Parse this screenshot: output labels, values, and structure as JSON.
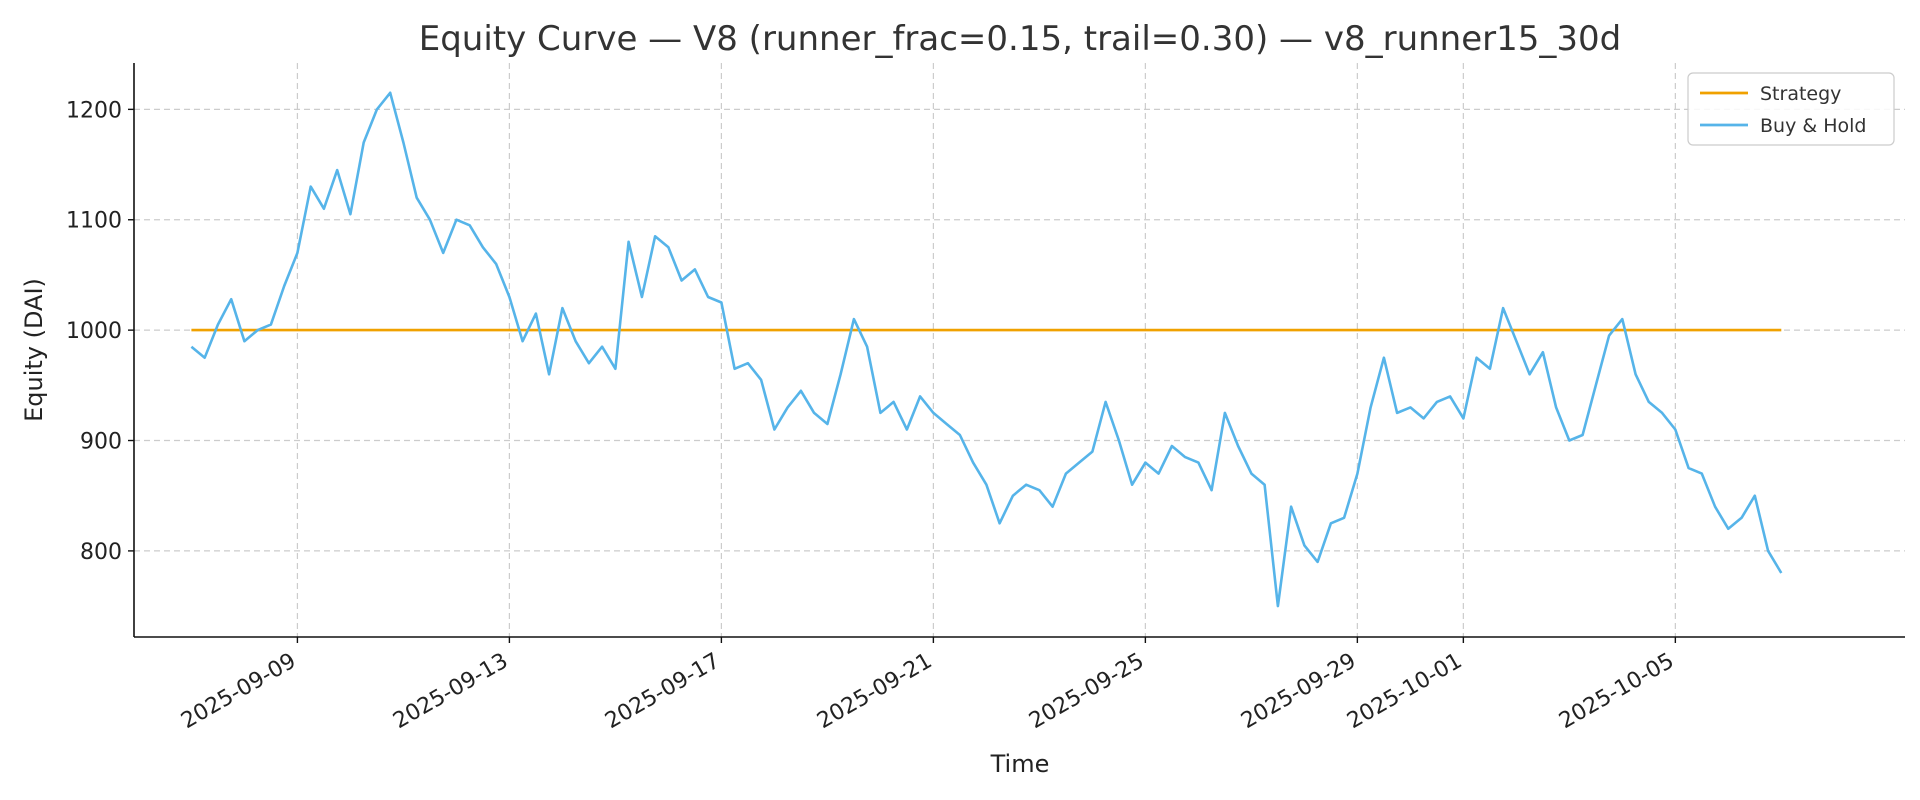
{
  "chart_data": {
    "type": "line",
    "title": "Equity Curve — V8 (runner_frac=0.15, trail=0.30) — v8_runner15_30d",
    "xlabel": "Time",
    "ylabel": "Equity (DAI)",
    "x_ticks": [
      "2025-09-09",
      "2025-09-13",
      "2025-09-17",
      "2025-09-21",
      "2025-09-25",
      "2025-09-29",
      "2025-10-01",
      "2025-10-05"
    ],
    "y_ticks": [
      800,
      900,
      1000,
      1100,
      1200
    ],
    "xlim": [
      "2025-09-05T22:00",
      "2025-10-09T08:00"
    ],
    "ylim": [
      722,
      1242
    ],
    "grid": true,
    "legend_position": "top-right",
    "series": [
      {
        "name": "Strategy",
        "color": "#f0a100",
        "points": [
          [
            "2025-09-07T00:00",
            1000
          ],
          [
            "2025-10-07T00:00",
            1000
          ]
        ]
      },
      {
        "name": "Buy & Hold",
        "color": "#56b4e9",
        "points": [
          [
            "2025-09-07T00:00",
            985
          ],
          [
            "2025-09-07T06:00",
            975
          ],
          [
            "2025-09-07T12:00",
            1005
          ],
          [
            "2025-09-07T18:00",
            1028
          ],
          [
            "2025-09-08T00:00",
            990
          ],
          [
            "2025-09-08T06:00",
            1000
          ],
          [
            "2025-09-08T12:00",
            1005
          ],
          [
            "2025-09-08T18:00",
            1040
          ],
          [
            "2025-09-09T00:00",
            1070
          ],
          [
            "2025-09-09T06:00",
            1130
          ],
          [
            "2025-09-09T12:00",
            1110
          ],
          [
            "2025-09-09T18:00",
            1145
          ],
          [
            "2025-09-10T00:00",
            1105
          ],
          [
            "2025-09-10T06:00",
            1170
          ],
          [
            "2025-09-10T12:00",
            1200
          ],
          [
            "2025-09-10T18:00",
            1215
          ],
          [
            "2025-09-11T00:00",
            1170
          ],
          [
            "2025-09-11T06:00",
            1120
          ],
          [
            "2025-09-11T12:00",
            1100
          ],
          [
            "2025-09-11T18:00",
            1070
          ],
          [
            "2025-09-12T00:00",
            1100
          ],
          [
            "2025-09-12T06:00",
            1095
          ],
          [
            "2025-09-12T12:00",
            1075
          ],
          [
            "2025-09-12T18:00",
            1060
          ],
          [
            "2025-09-13T00:00",
            1030
          ],
          [
            "2025-09-13T06:00",
            990
          ],
          [
            "2025-09-13T12:00",
            1015
          ],
          [
            "2025-09-13T18:00",
            960
          ],
          [
            "2025-09-14T00:00",
            1020
          ],
          [
            "2025-09-14T06:00",
            990
          ],
          [
            "2025-09-14T12:00",
            970
          ],
          [
            "2025-09-14T18:00",
            985
          ],
          [
            "2025-09-15T00:00",
            965
          ],
          [
            "2025-09-15T06:00",
            1080
          ],
          [
            "2025-09-15T12:00",
            1030
          ],
          [
            "2025-09-15T18:00",
            1085
          ],
          [
            "2025-09-16T00:00",
            1075
          ],
          [
            "2025-09-16T06:00",
            1045
          ],
          [
            "2025-09-16T12:00",
            1055
          ],
          [
            "2025-09-16T18:00",
            1030
          ],
          [
            "2025-09-17T00:00",
            1025
          ],
          [
            "2025-09-17T06:00",
            965
          ],
          [
            "2025-09-17T12:00",
            970
          ],
          [
            "2025-09-17T18:00",
            955
          ],
          [
            "2025-09-18T00:00",
            910
          ],
          [
            "2025-09-18T06:00",
            930
          ],
          [
            "2025-09-18T12:00",
            945
          ],
          [
            "2025-09-18T18:00",
            925
          ],
          [
            "2025-09-19T00:00",
            915
          ],
          [
            "2025-09-19T06:00",
            960
          ],
          [
            "2025-09-19T12:00",
            1010
          ],
          [
            "2025-09-19T18:00",
            985
          ],
          [
            "2025-09-20T00:00",
            925
          ],
          [
            "2025-09-20T06:00",
            935
          ],
          [
            "2025-09-20T12:00",
            910
          ],
          [
            "2025-09-20T18:00",
            940
          ],
          [
            "2025-09-21T00:00",
            925
          ],
          [
            "2025-09-21T06:00",
            915
          ],
          [
            "2025-09-21T12:00",
            905
          ],
          [
            "2025-09-21T18:00",
            880
          ],
          [
            "2025-09-22T00:00",
            860
          ],
          [
            "2025-09-22T06:00",
            825
          ],
          [
            "2025-09-22T12:00",
            850
          ],
          [
            "2025-09-22T18:00",
            860
          ],
          [
            "2025-09-23T00:00",
            855
          ],
          [
            "2025-09-23T06:00",
            840
          ],
          [
            "2025-09-23T12:00",
            870
          ],
          [
            "2025-09-23T18:00",
            880
          ],
          [
            "2025-09-24T00:00",
            890
          ],
          [
            "2025-09-24T06:00",
            935
          ],
          [
            "2025-09-24T12:00",
            900
          ],
          [
            "2025-09-24T18:00",
            860
          ],
          [
            "2025-09-25T00:00",
            880
          ],
          [
            "2025-09-25T06:00",
            870
          ],
          [
            "2025-09-25T12:00",
            895
          ],
          [
            "2025-09-25T18:00",
            885
          ],
          [
            "2025-09-26T00:00",
            880
          ],
          [
            "2025-09-26T06:00",
            855
          ],
          [
            "2025-09-26T12:00",
            925
          ],
          [
            "2025-09-26T18:00",
            895
          ],
          [
            "2025-09-27T00:00",
            870
          ],
          [
            "2025-09-27T06:00",
            860
          ],
          [
            "2025-09-27T12:00",
            750
          ],
          [
            "2025-09-27T18:00",
            840
          ],
          [
            "2025-09-28T00:00",
            805
          ],
          [
            "2025-09-28T06:00",
            790
          ],
          [
            "2025-09-28T12:00",
            825
          ],
          [
            "2025-09-28T18:00",
            830
          ],
          [
            "2025-09-29T00:00",
            870
          ],
          [
            "2025-09-29T06:00",
            930
          ],
          [
            "2025-09-29T12:00",
            975
          ],
          [
            "2025-09-29T18:00",
            925
          ],
          [
            "2025-09-30T00:00",
            930
          ],
          [
            "2025-09-30T06:00",
            920
          ],
          [
            "2025-09-30T12:00",
            935
          ],
          [
            "2025-09-30T18:00",
            940
          ],
          [
            "2025-10-01T00:00",
            920
          ],
          [
            "2025-10-01T06:00",
            975
          ],
          [
            "2025-10-01T12:00",
            965
          ],
          [
            "2025-10-01T18:00",
            1020
          ],
          [
            "2025-10-02T00:00",
            990
          ],
          [
            "2025-10-02T06:00",
            960
          ],
          [
            "2025-10-02T12:00",
            980
          ],
          [
            "2025-10-02T18:00",
            930
          ],
          [
            "2025-10-03T00:00",
            900
          ],
          [
            "2025-10-03T06:00",
            905
          ],
          [
            "2025-10-03T12:00",
            950
          ],
          [
            "2025-10-03T18:00",
            995
          ],
          [
            "2025-10-04T00:00",
            1010
          ],
          [
            "2025-10-04T06:00",
            960
          ],
          [
            "2025-10-04T12:00",
            935
          ],
          [
            "2025-10-04T18:00",
            925
          ],
          [
            "2025-10-05T00:00",
            910
          ],
          [
            "2025-10-05T06:00",
            875
          ],
          [
            "2025-10-05T12:00",
            870
          ],
          [
            "2025-10-05T18:00",
            840
          ],
          [
            "2025-10-06T00:00",
            820
          ],
          [
            "2025-10-06T06:00",
            830
          ],
          [
            "2025-10-06T12:00",
            850
          ],
          [
            "2025-10-06T18:00",
            800
          ],
          [
            "2025-10-07T00:00",
            780
          ]
        ]
      }
    ]
  }
}
